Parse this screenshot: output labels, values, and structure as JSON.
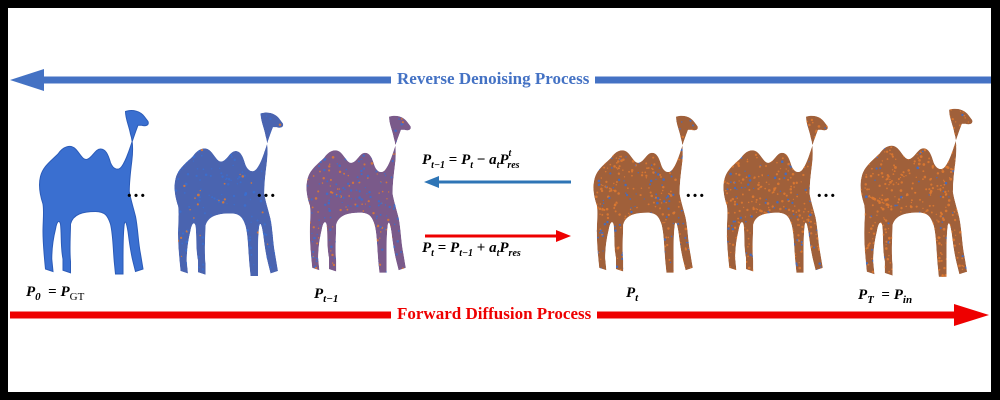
{
  "titles": {
    "reverse": "Reverse Denoising Process",
    "forward": "Forward Diffusion Process"
  },
  "colors": {
    "reverse_arrow": "#4472c4",
    "forward_arrow": "#ee0000",
    "clean_points": "#3a6fd0",
    "noise_points": "#e07a30",
    "small_reverse_arrow": "#2e75b6"
  },
  "ellipsis": "…",
  "labels": {
    "p0": {
      "main": "P",
      "sub": "0",
      "eq": "=",
      "rhs_main": "P",
      "rhs_sub": "GT"
    },
    "pt_minus_1": {
      "main": "P",
      "sub": "t−1"
    },
    "pt": {
      "main": "P",
      "sub": "t"
    },
    "pT": {
      "main": "P",
      "sub": "T",
      "eq": "=",
      "rhs_main": "P",
      "rhs_sub": "in"
    }
  },
  "equations": {
    "reverse": {
      "lhs": "P",
      "lhs_sub": "t−1",
      "eq": "=",
      "a": "P",
      "a_sub": "t",
      "op": "−",
      "b": "a",
      "b_sub": "t",
      "c": "P",
      "c_sub": "res",
      "c_sup": "t"
    },
    "forward": {
      "lhs": "P",
      "lhs_sub": "t",
      "eq": "=",
      "a": "P",
      "a_sub": "t−1",
      "op": "+",
      "b": "a",
      "b_sub": "t",
      "c": "P",
      "c_sub": "res"
    }
  },
  "camels": [
    {
      "id": "camel-p0",
      "noise": 0.0
    },
    {
      "id": "camel-intermediate-1",
      "noise": 0.15
    },
    {
      "id": "camel-p-t-minus-1",
      "noise": 0.4
    },
    {
      "id": "camel-p-t",
      "noise": 0.6
    },
    {
      "id": "camel-intermediate-2",
      "noise": 0.75
    },
    {
      "id": "camel-p-T",
      "noise": 0.9
    }
  ]
}
